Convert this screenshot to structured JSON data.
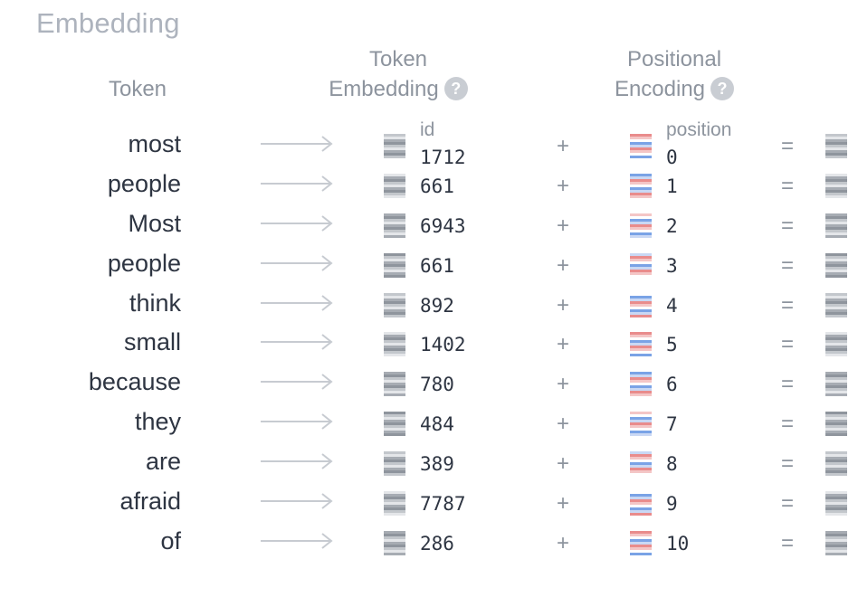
{
  "title": "Embedding",
  "headers": {
    "token": "Token",
    "token_embedding_line1": "Token",
    "token_embedding_line2": "Embedding",
    "positional_line1": "Positional",
    "positional_line2": "Encoding",
    "help_glyph": "?"
  },
  "sublabels": {
    "id": "id",
    "position": "position"
  },
  "operators": {
    "plus": "+",
    "equals": "="
  },
  "rows": [
    {
      "token": "most",
      "id": "1712",
      "position": "0"
    },
    {
      "token": "people",
      "id": "661",
      "position": "1"
    },
    {
      "token": "Most",
      "id": "6943",
      "position": "2"
    },
    {
      "token": "people",
      "id": "661",
      "position": "3"
    },
    {
      "token": "think",
      "id": "892",
      "position": "4"
    },
    {
      "token": "small",
      "id": "1402",
      "position": "5"
    },
    {
      "token": "because",
      "id": "780",
      "position": "6"
    },
    {
      "token": "they",
      "id": "484",
      "position": "7"
    },
    {
      "token": "are",
      "id": "389",
      "position": "8"
    },
    {
      "token": "afraid",
      "id": "7787",
      "position": "9"
    },
    {
      "token": "of",
      "id": "286",
      "position": "10"
    }
  ],
  "colors": {
    "token_embedding_swatch": [
      "#8f959d",
      "#c3c7cc",
      "#e4e6e9",
      "#a7acb3"
    ],
    "positional_swatch": [
      "#e98c8c",
      "#7aa3e6",
      "#f4c6c6",
      "#c9d8f4",
      "#ffffff"
    ],
    "output_swatch": [
      "#8f959d",
      "#c3c7cc",
      "#e4e6e9",
      "#a7acb3"
    ]
  }
}
